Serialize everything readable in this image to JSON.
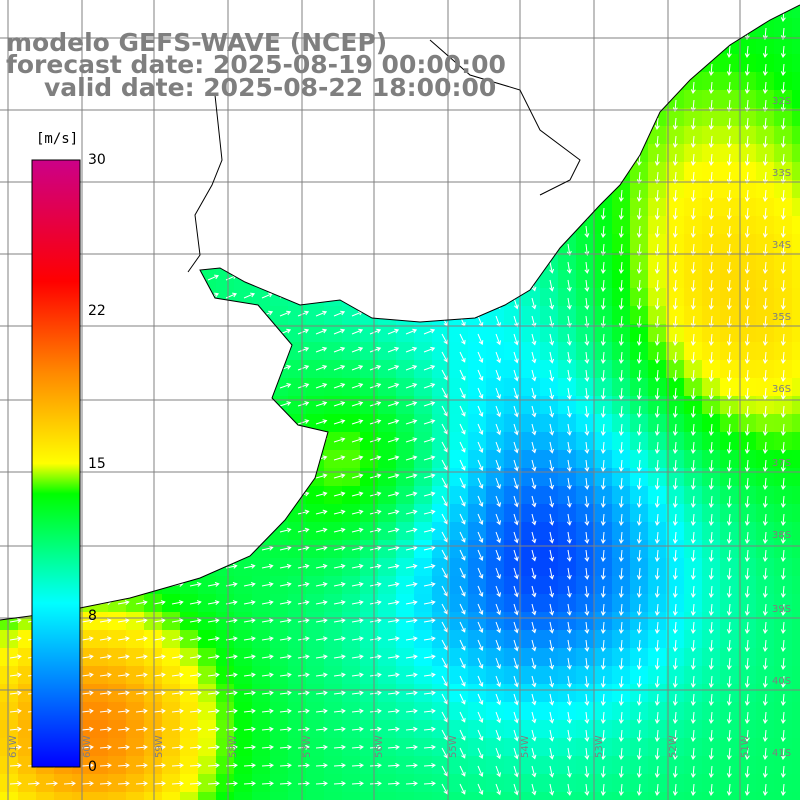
{
  "title": {
    "line1": "modelo GEFS-WAVE (NCEP)",
    "line2": "forecast date: 2025-08-19 00:00:00",
    "line3": "valid date: 2025-08-22 18:00:00"
  },
  "colorbar": {
    "unit": "[m/s]",
    "min": 0,
    "max": 30,
    "tick_labels": [
      "30",
      "22",
      "15",
      "8",
      "0"
    ],
    "tick_values": [
      30,
      22,
      15,
      8,
      0
    ],
    "colors": [
      "#0000ff",
      "#00ffff",
      "#00ff00",
      "#ffff00",
      "#ff8800",
      "#ff0000",
      "#cc0088"
    ],
    "color_stops": [
      0,
      0.27,
      0.45,
      0.5,
      0.65,
      0.8,
      1
    ]
  },
  "map": {
    "longitude_labels": [
      "61W",
      "60W",
      "59W",
      "58W",
      "57W",
      "56W",
      "55W",
      "54W",
      "53W",
      "52W",
      "51W"
    ],
    "latitude_labels": [
      "32S",
      "33S",
      "34S",
      "35S",
      "36S",
      "37S",
      "38S",
      "39S",
      "40S",
      "41S"
    ],
    "variable": "wind speed and direction",
    "land_color": "#ffffff",
    "grid_color": "#808080"
  }
}
